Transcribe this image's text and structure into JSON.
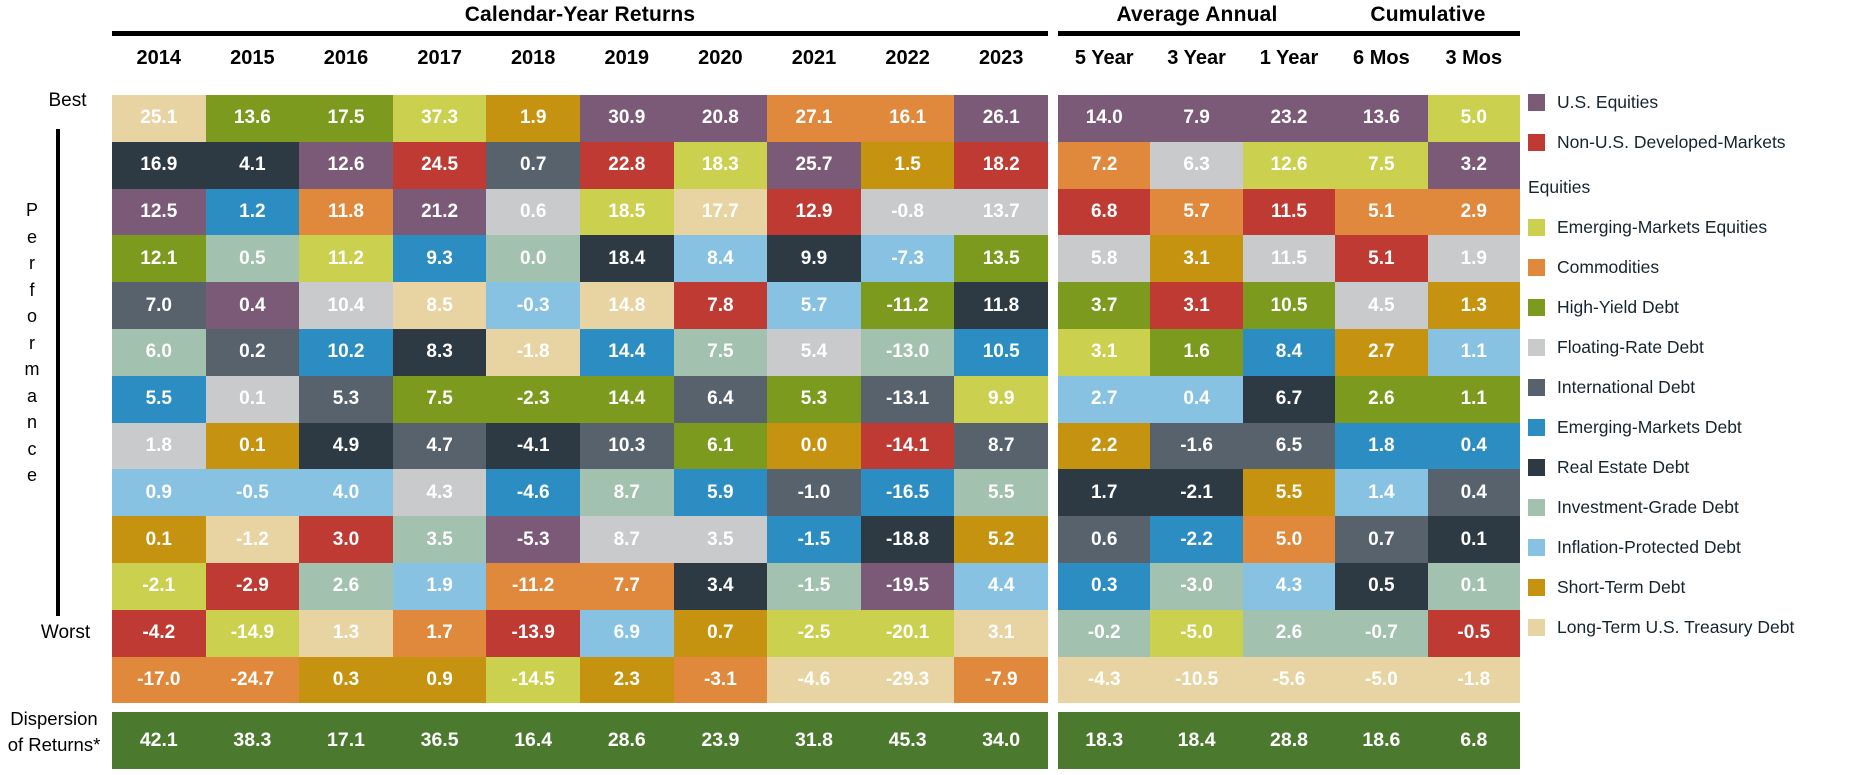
{
  "headers": {
    "calendar": "Calendar-Year Returns",
    "average_annual": "Average Annual",
    "cumulative": "Cumulative"
  },
  "axis": {
    "best": "Best",
    "worst": "Worst",
    "performance": "Performance"
  },
  "dispersion_label_lines": [
    "Dispersion",
    "of Returns*"
  ],
  "colors": {
    "use": "#7B5A78",
    "nus": "#BF3A33",
    "eme": "#CCD04F",
    "com": "#E0883B",
    "hy": "#7C9B1E",
    "fr": "#C8CACC",
    "intl": "#57626D",
    "emd": "#2C8DC3",
    "re": "#2D3A44",
    "ig": "#A2C1AE",
    "ip": "#88C2E2",
    "st": "#C69310",
    "lt": "#E8D4A2",
    "dispersion": "#4B7A2E"
  },
  "legend": [
    {
      "key": "use",
      "label": "U.S. Equities"
    },
    {
      "key": "nus",
      "label": "Non-U.S. Developed-Markets Equities"
    },
    {
      "key": "eme",
      "label": "Emerging-Markets Equities"
    },
    {
      "key": "com",
      "label": "Commodities"
    },
    {
      "key": "hy",
      "label": "High-Yield Debt"
    },
    {
      "key": "fr",
      "label": "Floating-Rate Debt"
    },
    {
      "key": "intl",
      "label": "International Debt"
    },
    {
      "key": "emd",
      "label": "Emerging-Markets Debt"
    },
    {
      "key": "re",
      "label": "Real Estate Debt"
    },
    {
      "key": "ig",
      "label": "Investment-Grade Debt"
    },
    {
      "key": "ip",
      "label": "Inflation-Protected Debt"
    },
    {
      "key": "st",
      "label": "Short-Term Debt"
    },
    {
      "key": "lt",
      "label": "Long-Term U.S. Treasury Debt"
    }
  ],
  "chart_data": {
    "type": "heatmap",
    "title": "Calendar-Year Returns",
    "sections": [
      {
        "title": "Calendar-Year Returns",
        "columns": [
          "2014",
          "2015",
          "2016",
          "2017",
          "2018",
          "2019",
          "2020",
          "2021",
          "2022",
          "2023"
        ]
      },
      {
        "title": "Average Annual",
        "columns": [
          "5 Year",
          "3 Year",
          "1 Year"
        ]
      },
      {
        "title": "Cumulative",
        "columns": [
          "6 Mos",
          "3 Mos"
        ]
      }
    ],
    "columns": [
      "2014",
      "2015",
      "2016",
      "2017",
      "2018",
      "2019",
      "2020",
      "2021",
      "2022",
      "2023",
      "5 Year",
      "3 Year",
      "1 Year",
      "6 Mos",
      "3 Mos"
    ],
    "row_order_note": "rows ranked Best (top) to Worst (bottom); each cell = [return %, asset key]",
    "rows": [
      [
        [
          "25.1",
          "lt"
        ],
        [
          "13.6",
          "hy"
        ],
        [
          "17.5",
          "hy"
        ],
        [
          "37.3",
          "eme"
        ],
        [
          "1.9",
          "st"
        ],
        [
          "30.9",
          "use"
        ],
        [
          "20.8",
          "use"
        ],
        [
          "27.1",
          "com"
        ],
        [
          "16.1",
          "com"
        ],
        [
          "26.1",
          "use"
        ],
        [
          "14.0",
          "use"
        ],
        [
          "7.9",
          "use"
        ],
        [
          "23.2",
          "use"
        ],
        [
          "13.6",
          "use"
        ],
        [
          "5.0",
          "eme"
        ]
      ],
      [
        [
          "16.9",
          "re"
        ],
        [
          "4.1",
          "re"
        ],
        [
          "12.6",
          "use"
        ],
        [
          "24.5",
          "nus"
        ],
        [
          "0.7",
          "intl"
        ],
        [
          "22.8",
          "nus"
        ],
        [
          "18.3",
          "eme"
        ],
        [
          "25.7",
          "use"
        ],
        [
          "1.5",
          "st"
        ],
        [
          "18.2",
          "nus"
        ],
        [
          "7.2",
          "com"
        ],
        [
          "6.3",
          "fr"
        ],
        [
          "12.6",
          "eme"
        ],
        [
          "7.5",
          "eme"
        ],
        [
          "3.2",
          "use"
        ]
      ],
      [
        [
          "12.5",
          "use"
        ],
        [
          "1.2",
          "emd"
        ],
        [
          "11.8",
          "com"
        ],
        [
          "21.2",
          "use"
        ],
        [
          "0.6",
          "fr"
        ],
        [
          "18.5",
          "eme"
        ],
        [
          "17.7",
          "lt"
        ],
        [
          "12.9",
          "nus"
        ],
        [
          "-0.8",
          "fr"
        ],
        [
          "13.7",
          "fr"
        ],
        [
          "6.8",
          "nus"
        ],
        [
          "5.7",
          "com"
        ],
        [
          "11.5",
          "nus"
        ],
        [
          "5.1",
          "com"
        ],
        [
          "2.9",
          "com"
        ]
      ],
      [
        [
          "12.1",
          "hy"
        ],
        [
          "0.5",
          "ig"
        ],
        [
          "11.2",
          "eme"
        ],
        [
          "9.3",
          "emd"
        ],
        [
          "0.0",
          "ig"
        ],
        [
          "18.4",
          "re"
        ],
        [
          "8.4",
          "ip"
        ],
        [
          "9.9",
          "re"
        ],
        [
          "-7.3",
          "ip"
        ],
        [
          "13.5",
          "hy"
        ],
        [
          "5.8",
          "fr"
        ],
        [
          "3.1",
          "st"
        ],
        [
          "11.5",
          "fr"
        ],
        [
          "5.1",
          "nus"
        ],
        [
          "1.9",
          "fr"
        ]
      ],
      [
        [
          "7.0",
          "intl"
        ],
        [
          "0.4",
          "use"
        ],
        [
          "10.4",
          "fr"
        ],
        [
          "8.5",
          "lt"
        ],
        [
          "-0.3",
          "ip"
        ],
        [
          "14.8",
          "lt"
        ],
        [
          "7.8",
          "nus"
        ],
        [
          "5.7",
          "ip"
        ],
        [
          "-11.2",
          "hy"
        ],
        [
          "11.8",
          "re"
        ],
        [
          "3.7",
          "hy"
        ],
        [
          "3.1",
          "nus"
        ],
        [
          "10.5",
          "hy"
        ],
        [
          "4.5",
          "fr"
        ],
        [
          "1.3",
          "st"
        ]
      ],
      [
        [
          "6.0",
          "ig"
        ],
        [
          "0.2",
          "intl"
        ],
        [
          "10.2",
          "emd"
        ],
        [
          "8.3",
          "re"
        ],
        [
          "-1.8",
          "lt"
        ],
        [
          "14.4",
          "emd"
        ],
        [
          "7.5",
          "ig"
        ],
        [
          "5.4",
          "fr"
        ],
        [
          "-13.0",
          "ig"
        ],
        [
          "10.5",
          "emd"
        ],
        [
          "3.1",
          "eme"
        ],
        [
          "1.6",
          "hy"
        ],
        [
          "8.4",
          "emd"
        ],
        [
          "2.7",
          "st"
        ],
        [
          "1.1",
          "ip"
        ]
      ],
      [
        [
          "5.5",
          "emd"
        ],
        [
          "0.1",
          "fr"
        ],
        [
          "5.3",
          "intl"
        ],
        [
          "7.5",
          "hy"
        ],
        [
          "-2.3",
          "hy"
        ],
        [
          "14.4",
          "hy"
        ],
        [
          "6.4",
          "intl"
        ],
        [
          "5.3",
          "hy"
        ],
        [
          "-13.1",
          "intl"
        ],
        [
          "9.9",
          "eme"
        ],
        [
          "2.7",
          "ip"
        ],
        [
          "0.4",
          "ip"
        ],
        [
          "6.7",
          "re"
        ],
        [
          "2.6",
          "hy"
        ],
        [
          "1.1",
          "hy"
        ]
      ],
      [
        [
          "1.8",
          "fr"
        ],
        [
          "0.1",
          "st"
        ],
        [
          "4.9",
          "re"
        ],
        [
          "4.7",
          "intl"
        ],
        [
          "-4.1",
          "re"
        ],
        [
          "10.3",
          "intl"
        ],
        [
          "6.1",
          "hy"
        ],
        [
          "0.0",
          "st"
        ],
        [
          "-14.1",
          "nus"
        ],
        [
          "8.7",
          "intl"
        ],
        [
          "2.2",
          "st"
        ],
        [
          "-1.6",
          "intl"
        ],
        [
          "6.5",
          "intl"
        ],
        [
          "1.8",
          "emd"
        ],
        [
          "0.4",
          "emd"
        ]
      ],
      [
        [
          "0.9",
          "ip"
        ],
        [
          "-0.5",
          "ip"
        ],
        [
          "4.0",
          "ip"
        ],
        [
          "4.3",
          "fr"
        ],
        [
          "-4.6",
          "emd"
        ],
        [
          "8.7",
          "ig"
        ],
        [
          "5.9",
          "emd"
        ],
        [
          "-1.0",
          "intl"
        ],
        [
          "-16.5",
          "emd"
        ],
        [
          "5.5",
          "ig"
        ],
        [
          "1.7",
          "re"
        ],
        [
          "-2.1",
          "re"
        ],
        [
          "5.5",
          "st"
        ],
        [
          "1.4",
          "ip"
        ],
        [
          "0.4",
          "intl"
        ]
      ],
      [
        [
          "0.1",
          "st"
        ],
        [
          "-1.2",
          "lt"
        ],
        [
          "3.0",
          "nus"
        ],
        [
          "3.5",
          "ig"
        ],
        [
          "-5.3",
          "use"
        ],
        [
          "8.7",
          "fr"
        ],
        [
          "3.5",
          "fr"
        ],
        [
          "-1.5",
          "emd"
        ],
        [
          "-18.8",
          "re"
        ],
        [
          "5.2",
          "st"
        ],
        [
          "0.6",
          "intl"
        ],
        [
          "-2.2",
          "emd"
        ],
        [
          "5.0",
          "com"
        ],
        [
          "0.7",
          "intl"
        ],
        [
          "0.1",
          "re"
        ]
      ],
      [
        [
          "-2.1",
          "eme"
        ],
        [
          "-2.9",
          "nus"
        ],
        [
          "2.6",
          "ig"
        ],
        [
          "1.9",
          "ip"
        ],
        [
          "-11.2",
          "com"
        ],
        [
          "7.7",
          "com"
        ],
        [
          "3.4",
          "re"
        ],
        [
          "-1.5",
          "ig"
        ],
        [
          "-19.5",
          "use"
        ],
        [
          "4.4",
          "ip"
        ],
        [
          "0.3",
          "emd"
        ],
        [
          "-3.0",
          "ig"
        ],
        [
          "4.3",
          "ip"
        ],
        [
          "0.5",
          "re"
        ],
        [
          "0.1",
          "ig"
        ]
      ],
      [
        [
          "-4.2",
          "nus"
        ],
        [
          "-14.9",
          "eme"
        ],
        [
          "1.3",
          "lt"
        ],
        [
          "1.7",
          "com"
        ],
        [
          "-13.9",
          "nus"
        ],
        [
          "6.9",
          "ip"
        ],
        [
          "0.7",
          "st"
        ],
        [
          "-2.5",
          "eme"
        ],
        [
          "-20.1",
          "eme"
        ],
        [
          "3.1",
          "lt"
        ],
        [
          "-0.2",
          "ig"
        ],
        [
          "-5.0",
          "eme"
        ],
        [
          "2.6",
          "ig"
        ],
        [
          "-0.7",
          "ig"
        ],
        [
          "-0.5",
          "nus"
        ]
      ],
      [
        [
          "-17.0",
          "com"
        ],
        [
          "-24.7",
          "com"
        ],
        [
          "0.3",
          "st"
        ],
        [
          "0.9",
          "st"
        ],
        [
          "-14.5",
          "eme"
        ],
        [
          "2.3",
          "st"
        ],
        [
          "-3.1",
          "com"
        ],
        [
          "-4.6",
          "lt"
        ],
        [
          "-29.3",
          "lt"
        ],
        [
          "-7.9",
          "com"
        ],
        [
          "-4.3",
          "lt"
        ],
        [
          "-10.5",
          "lt"
        ],
        [
          "-5.6",
          "lt"
        ],
        [
          "-5.0",
          "lt"
        ],
        [
          "-1.8",
          "lt"
        ]
      ]
    ],
    "dispersion": {
      "label": "Dispersion of Returns*",
      "values": [
        "42.1",
        "38.3",
        "17.1",
        "36.5",
        "16.4",
        "28.6",
        "23.9",
        "31.8",
        "45.3",
        "34.0",
        "18.3",
        "18.4",
        "28.8",
        "18.6",
        "6.8"
      ]
    }
  }
}
